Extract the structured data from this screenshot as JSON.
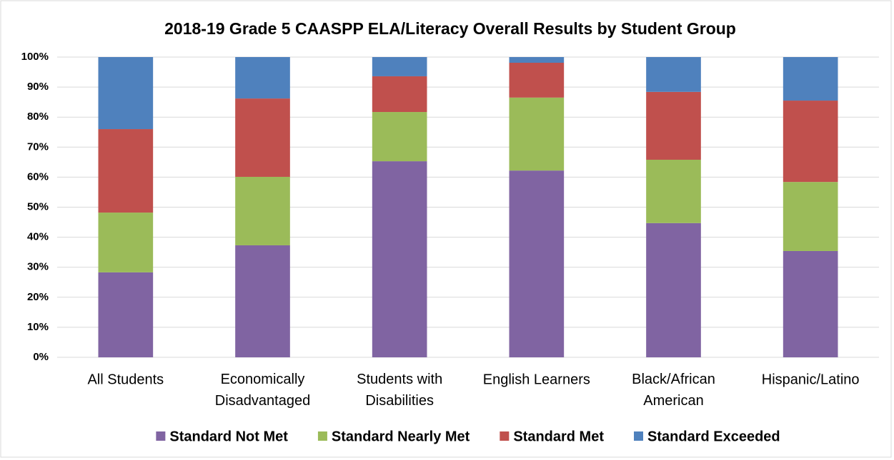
{
  "chart_data": {
    "type": "stacked_bar",
    "title": "2018-19 Grade 5 CAASPP ELA/Literacy Overall Results by Student Group",
    "categories": [
      "All Students",
      "Economically Disadvantaged",
      "Students with Disabilities",
      "English Learners",
      "Black/African American",
      "Hispanic/Latino"
    ],
    "series": [
      {
        "name": "Standard Not Met",
        "color": "#8064a2",
        "values": [
          28.3,
          37.3,
          65.3,
          62.2,
          44.7,
          35.4
        ]
      },
      {
        "name": "Standard Nearly Met",
        "color": "#9bbb59",
        "values": [
          19.9,
          22.8,
          16.4,
          24.3,
          21.1,
          23.0
        ]
      },
      {
        "name": "Standard Met",
        "color": "#c0504d",
        "values": [
          27.8,
          26.1,
          11.9,
          11.6,
          22.6,
          27.1
        ]
      },
      {
        "name": "Standard Exceeded",
        "color": "#4f81bd",
        "values": [
          24.0,
          13.8,
          6.4,
          1.9,
          11.6,
          14.5
        ]
      }
    ],
    "ylim": [
      0,
      100
    ],
    "yticks": [
      {
        "value": 0,
        "label": "0%"
      },
      {
        "value": 10,
        "label": "10%"
      },
      {
        "value": 20,
        "label": "20%"
      },
      {
        "value": 30,
        "label": "30%"
      },
      {
        "value": 40,
        "label": "40%"
      },
      {
        "value": 50,
        "label": "50%"
      },
      {
        "value": 60,
        "label": "60%"
      },
      {
        "value": 70,
        "label": "70%"
      },
      {
        "value": 80,
        "label": "80%"
      },
      {
        "value": 90,
        "label": "90%"
      },
      {
        "value": 100,
        "label": "100%"
      }
    ],
    "grid": true,
    "legend": "bottom"
  }
}
